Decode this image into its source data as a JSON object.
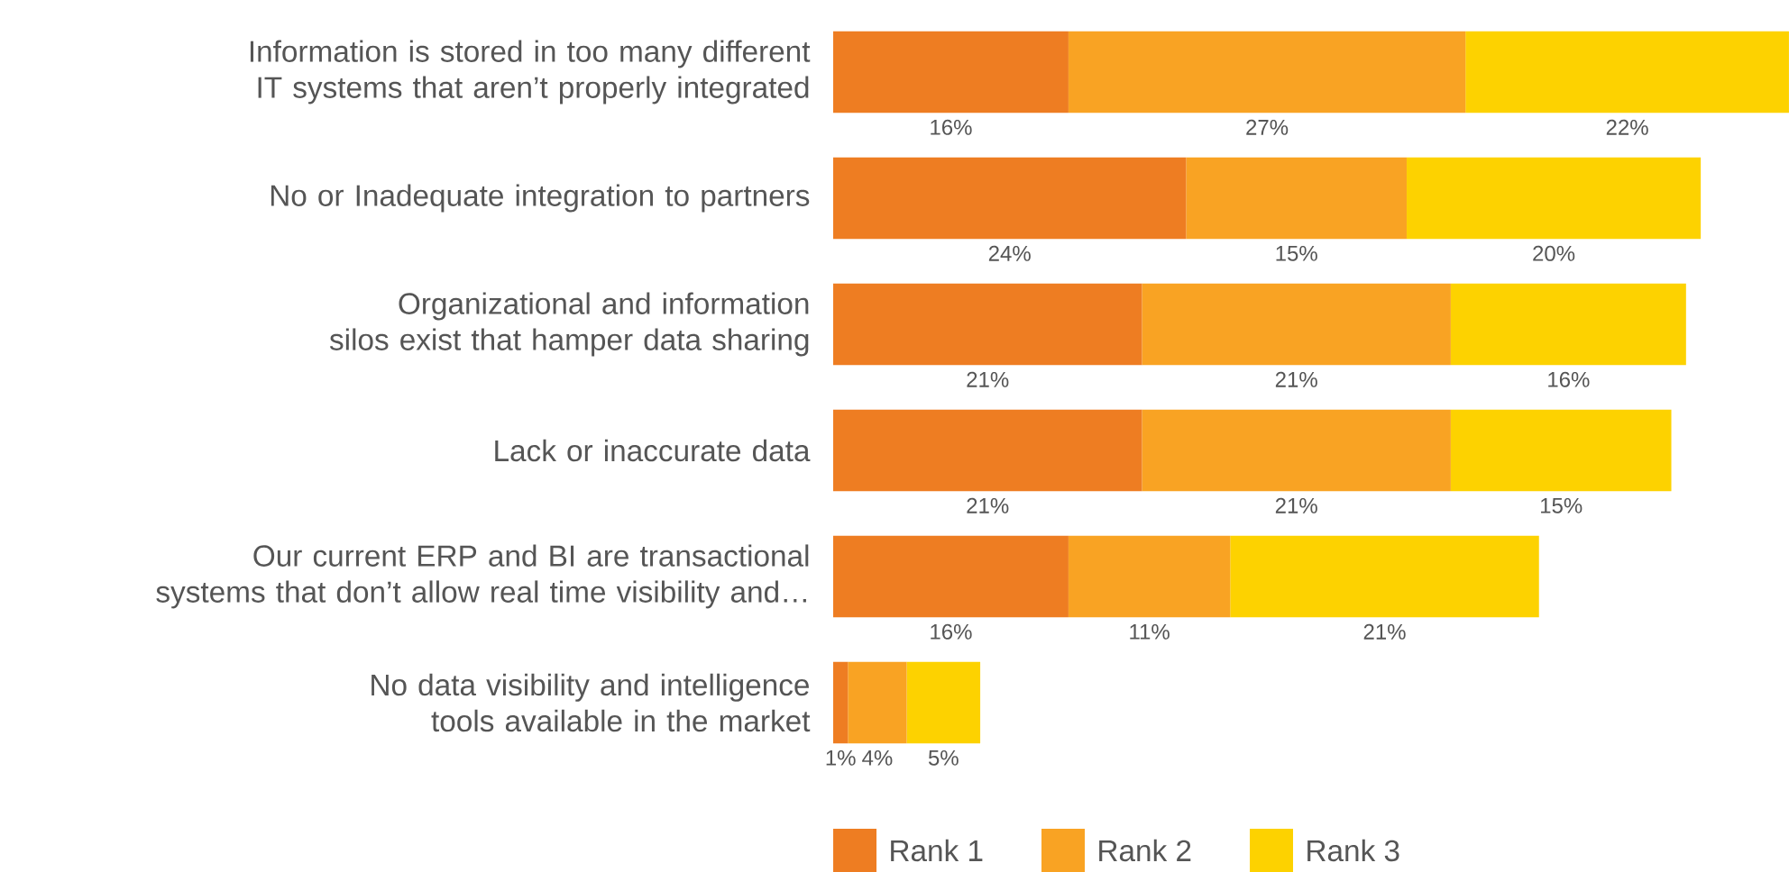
{
  "chart_data": {
    "type": "bar",
    "orientation": "horizontal",
    "stacked": true,
    "legend": "bottom",
    "categories": [
      "Information is stored in too many different IT systems that aren’t properly integrated",
      "No or Inadequate integration to partners",
      "Organizational and information silos exist that hamper data sharing",
      "Lack or inaccurate data",
      "Our current ERP and BI are transactional systems that don’t allow real time visibility and…",
      "No data visibility and intelligence tools available in the market"
    ],
    "series": [
      {
        "name": "Rank 1",
        "color": "#ee7d22",
        "values": [
          16,
          24,
          21,
          21,
          16,
          1
        ],
        "value_labels": [
          "16%",
          "24%",
          "21%",
          "21%",
          "16%",
          "1%"
        ]
      },
      {
        "name": "Rank 2",
        "color": "#f9a323",
        "values": [
          27,
          15,
          21,
          21,
          11,
          4
        ],
        "value_labels": [
          "27%",
          "15%",
          "21%",
          "21%",
          "11%",
          "4%"
        ]
      },
      {
        "name": "Rank 3",
        "color": "#fdd200",
        "values": [
          22,
          20,
          16,
          15,
          21,
          5
        ],
        "value_labels": [
          "22%",
          "20%",
          "16%",
          "15%",
          "21%",
          "5%"
        ]
      }
    ]
  }
}
